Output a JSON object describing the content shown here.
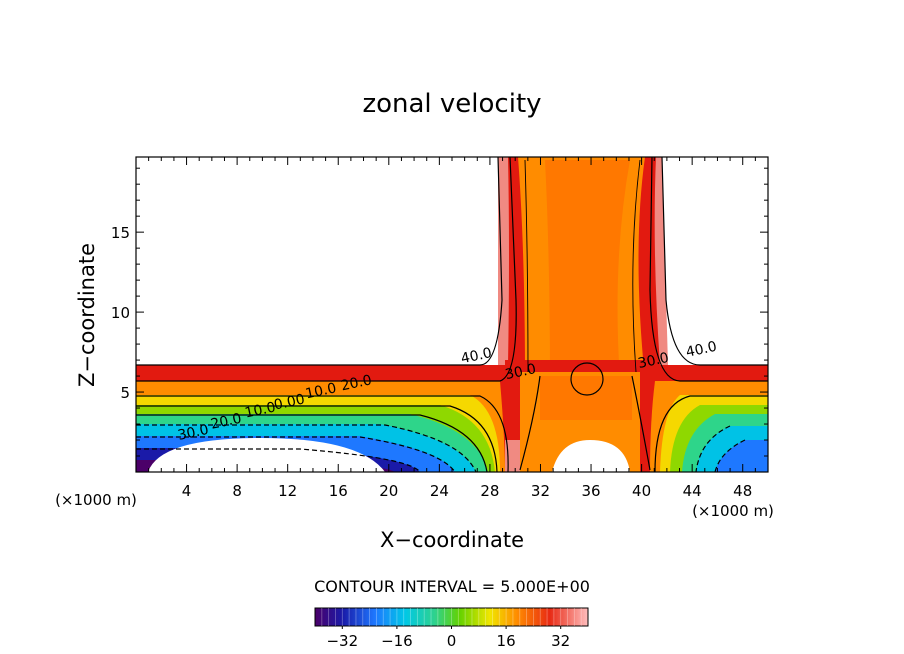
{
  "chart_data": {
    "type": "contour",
    "title": "zonal velocity",
    "xlabel": "X−coordinate",
    "ylabel": "Z−coordinate",
    "x_unit_left": "(×1000 m)",
    "x_unit_right": "(×1000 m)",
    "xlim": [
      0,
      50
    ],
    "ylim": [
      0,
      19.7
    ],
    "x_ticks": [
      4,
      8,
      12,
      16,
      20,
      24,
      28,
      32,
      36,
      40,
      44,
      48
    ],
    "y_ticks": [
      5,
      10,
      15
    ],
    "contour_interval_text": "CONTOUR INTERVAL = 5.000E+00",
    "colorbar": {
      "min": -40,
      "max": 40,
      "ticks": [
        "−32",
        "−16",
        "0",
        "16",
        "32"
      ],
      "tick_values": [
        -32,
        -16,
        0,
        16,
        32
      ]
    },
    "contour_labels": [
      {
        "text": "40.0",
        "x": 27.0,
        "z": 7.0
      },
      {
        "text": "30.0",
        "x": 30.5,
        "z": 6.0
      },
      {
        "text": "30.0",
        "x": 41.0,
        "z": 6.7
      },
      {
        "text": "40.0",
        "x": 44.8,
        "z": 7.4
      },
      {
        "text": "20.0",
        "x": 17.5,
        "z": 5.3
      },
      {
        "text": "10.0",
        "x": 14.7,
        "z": 4.8
      },
      {
        "text": "0.00",
        "x": 12.2,
        "z": 4.1
      },
      {
        "text": "10.0",
        "x": 9.9,
        "z": 3.6
      },
      {
        "text": "20.0",
        "x": 7.2,
        "z": 2.9
      },
      {
        "text": "30.0",
        "x": 4.6,
        "z": 2.2
      }
    ]
  }
}
